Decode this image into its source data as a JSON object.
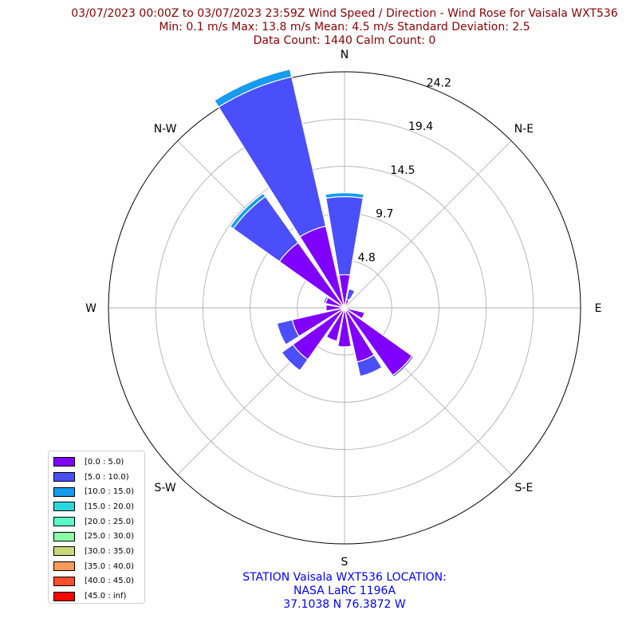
{
  "title_lines": [
    "03/07/2023 00:00Z to 03/07/2023 23:59Z Wind Speed / Direction - Wind Rose for Vaisala WXT536",
    "Min: 0.1 m/s   Max: 13.8 m/s   Mean: 4.5 m/s  Standard Deviation: 2.5",
    "Data Count: 1440  Calm Count:  0"
  ],
  "footer_lines": [
    "STATION Vaisala WXT536 LOCATION:",
    "NASA LaRC 1196A",
    "37.1038 N 76.3872 W"
  ],
  "chart_data": {
    "type": "windrose",
    "radial_ticks": [
      "4.8",
      "9.7",
      "14.5",
      "19.4",
      "24.2"
    ],
    "radial_tick_values": [
      4.84,
      9.68,
      14.52,
      19.36,
      24.2
    ],
    "rmax": 24.2,
    "direction_labels": [
      "N",
      "N-E",
      "E",
      "S-E",
      "S",
      "S-W",
      "W",
      "N-W"
    ],
    "bins": [
      {
        "label": "[0.0 : 5.0)",
        "color": "#7f00ff"
      },
      {
        "label": "[5.0 : 10.0)",
        "color": "#4a4efb"
      },
      {
        "label": "[10.0 : 15.0)",
        "color": "#169bef"
      },
      {
        "label": "[15.0 : 20.0)",
        "color": "#2ad8de"
      },
      {
        "label": "[20.0 : 25.0)",
        "color": "#5af8c8"
      },
      {
        "label": "[25.0 : 30.0)",
        "color": "#8cfca6"
      },
      {
        "label": "[30.0 : 35.0)",
        "color": "#cad87a"
      },
      {
        "label": "[35.0 : 40.0)",
        "color": "#ff9b57"
      },
      {
        "label": "[40.0 : 45.0)",
        "color": "#ff4e2a"
      },
      {
        "label": "[45.0 : inf)",
        "color": "#ff0000"
      }
    ],
    "sectors": [
      {
        "direction": 0,
        "values": [
          3.4,
          8.0,
          0.4
        ]
      },
      {
        "direction": 22.5,
        "values": [
          0.9,
          1.1,
          0
        ]
      },
      {
        "direction": 45,
        "values": [
          0.3,
          0,
          0
        ]
      },
      {
        "direction": 67.5,
        "values": [
          0.2,
          0,
          0
        ]
      },
      {
        "direction": 90,
        "values": [
          0.2,
          0,
          0
        ]
      },
      {
        "direction": 112.5,
        "values": [
          2.1,
          0,
          0
        ]
      },
      {
        "direction": 135,
        "values": [
          8.5,
          0.2,
          0
        ]
      },
      {
        "direction": 157.5,
        "values": [
          5.7,
          1.5,
          0
        ]
      },
      {
        "direction": 180,
        "values": [
          4.0,
          0,
          0
        ]
      },
      {
        "direction": 202.5,
        "values": [
          3.5,
          0,
          0
        ]
      },
      {
        "direction": 225,
        "values": [
          6.5,
          1.4,
          0
        ]
      },
      {
        "direction": 247.5,
        "values": [
          5.5,
          1.6,
          0
        ]
      },
      {
        "direction": 270,
        "values": [
          1.9,
          0,
          0
        ]
      },
      {
        "direction": 292.5,
        "values": [
          2.0,
          0.2,
          0
        ]
      },
      {
        "direction": 315,
        "values": [
          8.2,
          5.8,
          0.4
        ]
      },
      {
        "direction": 337.5,
        "values": [
          8.6,
          15.7,
          0.8
        ]
      }
    ]
  }
}
